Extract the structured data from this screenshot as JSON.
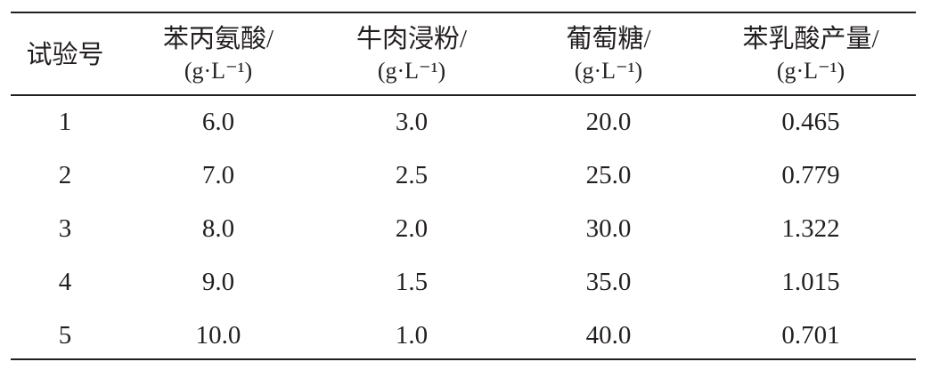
{
  "table": {
    "header": [
      {
        "name": "试验号"
      },
      {
        "name": "苯丙氨酸/",
        "unit": "(g·L⁻¹)"
      },
      {
        "name": "牛肉浸粉/",
        "unit": "(g·L⁻¹)"
      },
      {
        "name": "葡萄糖/",
        "unit": "(g·L⁻¹)"
      },
      {
        "name": "苯乳酸产量/",
        "unit": "(g·L⁻¹)"
      }
    ],
    "rows": [
      [
        "1",
        "6.0",
        "3.0",
        "20.0",
        "0.465"
      ],
      [
        "2",
        "7.0",
        "2.5",
        "25.0",
        "0.779"
      ],
      [
        "3",
        "8.0",
        "2.0",
        "30.0",
        "1.322"
      ],
      [
        "4",
        "9.0",
        "1.5",
        "35.0",
        "1.015"
      ],
      [
        "5",
        "10.0",
        "1.0",
        "40.0",
        "0.701"
      ]
    ]
  }
}
